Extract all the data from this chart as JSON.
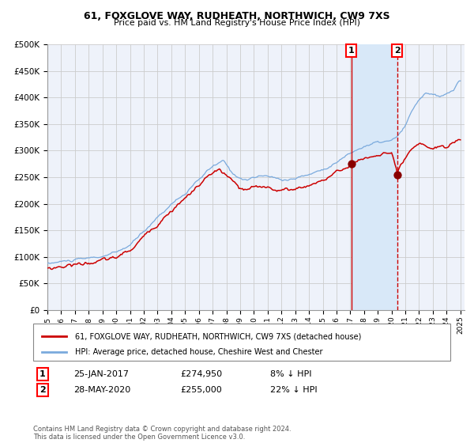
{
  "title1": "61, FOXGLOVE WAY, RUDHEATH, NORTHWICH, CW9 7XS",
  "title2": "Price paid vs. HM Land Registry's House Price Index (HPI)",
  "legend1": "61, FOXGLOVE WAY, RUDHEATH, NORTHWICH, CW9 7XS (detached house)",
  "legend2": "HPI: Average price, detached house, Cheshire West and Chester",
  "annotation1_label": "1",
  "annotation1_date": "25-JAN-2017",
  "annotation1_price": "£274,950",
  "annotation1_hpi": "8% ↓ HPI",
  "annotation1_year": 2017.07,
  "annotation1_value": 274950,
  "annotation2_label": "2",
  "annotation2_date": "28-MAY-2020",
  "annotation2_price": "£255,000",
  "annotation2_hpi": "22% ↓ HPI",
  "annotation2_year": 2020.41,
  "annotation2_value": 255000,
  "footer": "Contains HM Land Registry data © Crown copyright and database right 2024.\nThis data is licensed under the Open Government Licence v3.0.",
  "hpi_color": "#7aaadd",
  "price_color": "#cc0000",
  "dot_color": "#880000",
  "vline1_color": "#cc0000",
  "vline2_color": "#cc0000",
  "bg_highlight_color": "#d8e8f8",
  "grid_color": "#cccccc",
  "plot_bg": "#eef2fa",
  "ylim": [
    0,
    500000
  ],
  "yticks": [
    0,
    50000,
    100000,
    150000,
    200000,
    250000,
    300000,
    350000,
    400000,
    450000,
    500000
  ],
  "xlim_start": 1995,
  "xlim_end": 2025.3
}
